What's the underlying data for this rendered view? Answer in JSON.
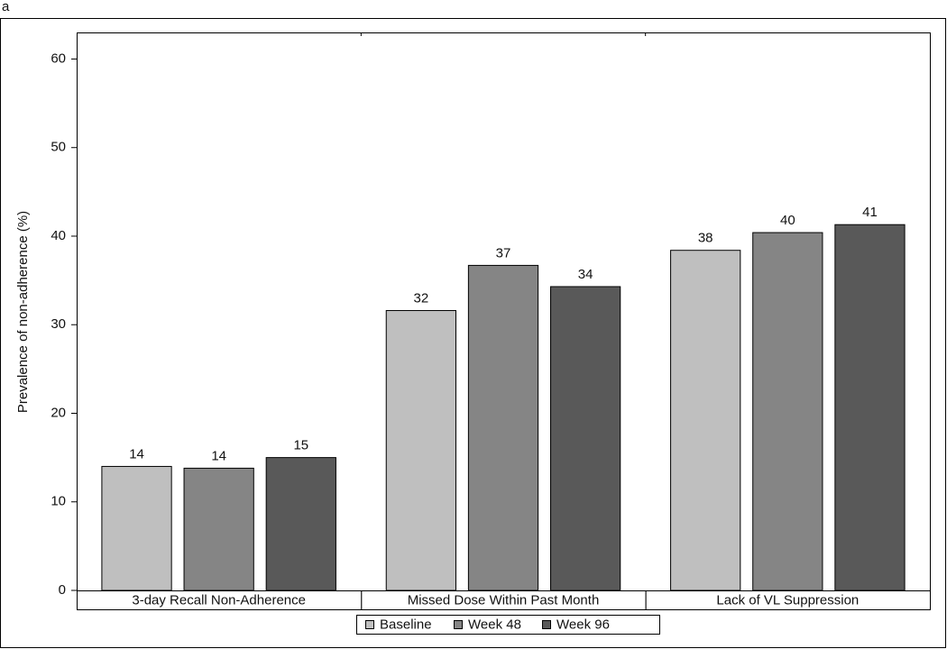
{
  "chart_data": {
    "type": "bar",
    "panel_label": "a",
    "y_label": "Prevalence of non-adherence (%)",
    "categories": [
      "3-day Recall Non-Adherence",
      "Missed Dose Within Past Month",
      "Lack of VL Suppression"
    ],
    "series": [
      {
        "name": "Baseline",
        "color": "#bfbfbf",
        "values": [
          14.0,
          31.6,
          38.4
        ],
        "value_labels": [
          "14",
          "32",
          "38"
        ]
      },
      {
        "name": "Week 48",
        "color": "#858585",
        "values": [
          13.8,
          36.7,
          40.4
        ],
        "value_labels": [
          "14",
          "37",
          "40"
        ]
      },
      {
        "name": "Week 96",
        "color": "#595959",
        "values": [
          15.0,
          34.3,
          41.3
        ],
        "value_labels": [
          "15",
          "34",
          "41"
        ]
      }
    ],
    "ylim": [
      0,
      63
    ],
    "yticks": [
      0,
      10,
      20,
      30,
      40,
      50,
      60
    ]
  }
}
